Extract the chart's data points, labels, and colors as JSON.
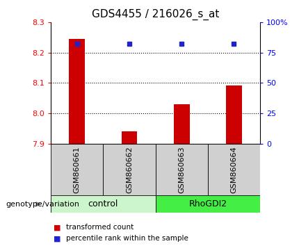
{
  "title": "GDS4455 / 216026_s_at",
  "samples": [
    "GSM860661",
    "GSM860662",
    "GSM860663",
    "GSM860664"
  ],
  "group_colors": [
    "#b8f0b8",
    "#b8f0b8",
    "#44dd44",
    "#44dd44"
  ],
  "bar_values": [
    8.245,
    7.942,
    8.03,
    8.092
  ],
  "percentile_values": [
    82,
    82,
    82,
    82
  ],
  "ylim": [
    7.9,
    8.3
  ],
  "yticks": [
    7.9,
    8.0,
    8.1,
    8.2,
    8.3
  ],
  "right_yticks": [
    0,
    25,
    50,
    75,
    100
  ],
  "bar_color": "#cc0000",
  "dot_color": "#2222cc",
  "title_fontsize": 11,
  "tick_fontsize": 8,
  "label_fontsize": 8,
  "legend_fontsize": 7.5,
  "group_label_fontsize": 9,
  "sample_fontsize": 8,
  "genotype_label": "genotype/variation",
  "legend_items": [
    "transformed count",
    "percentile rank within the sample"
  ],
  "background_color": "#ffffff",
  "control_color": "#ccf5cc",
  "rhogdi2_color": "#44ee44"
}
